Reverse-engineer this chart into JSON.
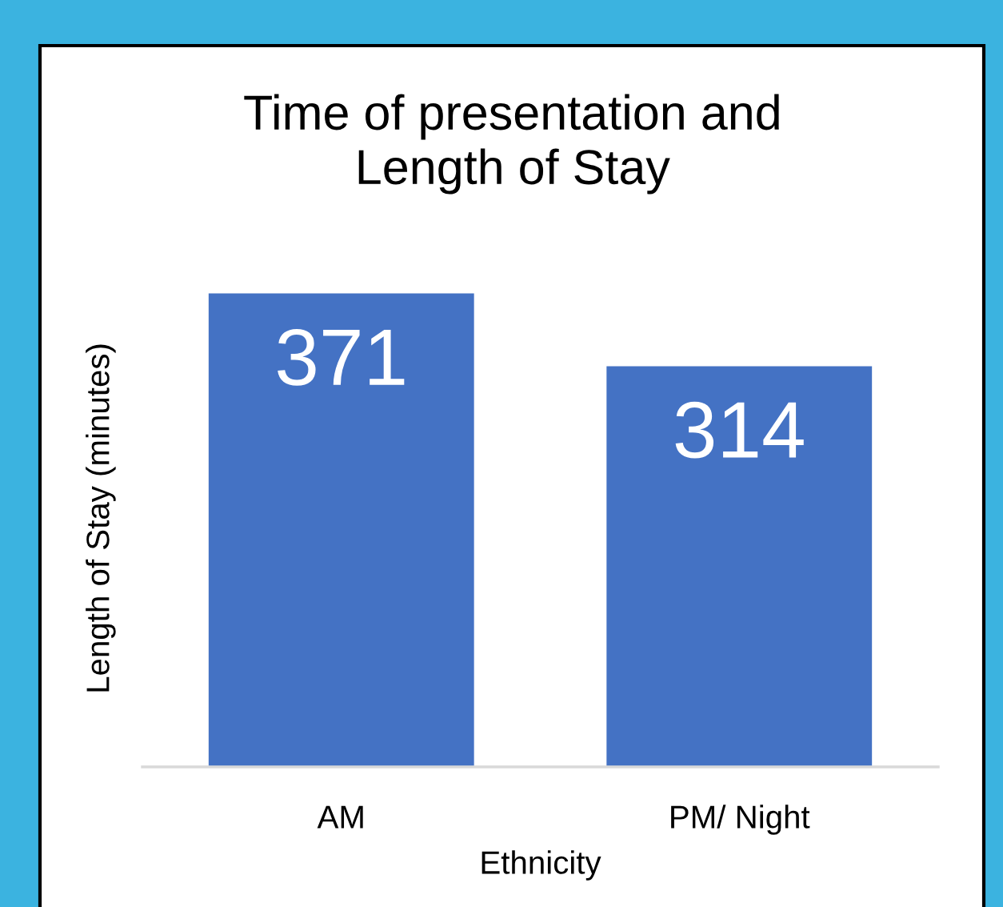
{
  "chart_data": {
    "type": "bar",
    "title": "Time of presentation and\nLength of Stay",
    "xlabel": "Ethnicity",
    "ylabel": "Length of Stay (minutes)",
    "categories": [
      "AM",
      "PM/ Night"
    ],
    "values": [
      371,
      314
    ],
    "color": "#4472c4",
    "data_labels": true,
    "grid": false,
    "legend": false,
    "tick_labels": "x"
  }
}
